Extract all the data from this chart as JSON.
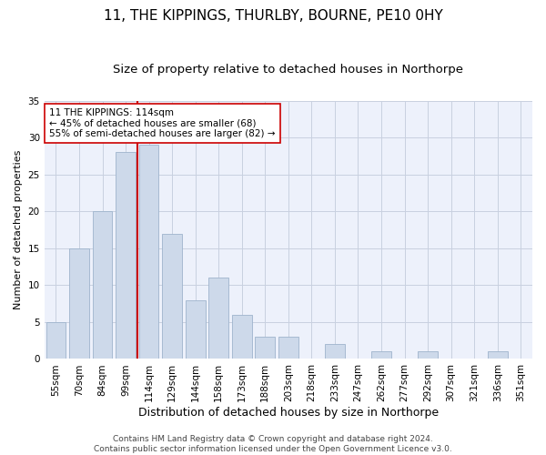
{
  "title": "11, THE KIPPINGS, THURLBY, BOURNE, PE10 0HY",
  "subtitle": "Size of property relative to detached houses in Northorpe",
  "xlabel": "Distribution of detached houses by size in Northorpe",
  "ylabel": "Number of detached properties",
  "categories": [
    "55sqm",
    "70sqm",
    "84sqm",
    "99sqm",
    "114sqm",
    "129sqm",
    "144sqm",
    "158sqm",
    "173sqm",
    "188sqm",
    "203sqm",
    "218sqm",
    "233sqm",
    "247sqm",
    "262sqm",
    "277sqm",
    "292sqm",
    "307sqm",
    "321sqm",
    "336sqm",
    "351sqm"
  ],
  "values": [
    5,
    15,
    20,
    28,
    29,
    17,
    8,
    11,
    6,
    3,
    3,
    0,
    2,
    0,
    1,
    0,
    1,
    0,
    0,
    1,
    0
  ],
  "bar_color": "#cdd9ea",
  "bar_edge_color": "#9eb4cc",
  "vline_x_pos": 3.5,
  "vline_color": "#cc0000",
  "annotation_text": "11 THE KIPPINGS: 114sqm\n← 45% of detached houses are smaller (68)\n55% of semi-detached houses are larger (82) →",
  "annotation_box_facecolor": "#ffffff",
  "annotation_box_edgecolor": "#cc0000",
  "ylim": [
    0,
    35
  ],
  "yticks": [
    0,
    5,
    10,
    15,
    20,
    25,
    30,
    35
  ],
  "grid_color": "#c8d0e0",
  "plot_bg_color": "#edf1fb",
  "footer_line1": "Contains HM Land Registry data © Crown copyright and database right 2024.",
  "footer_line2": "Contains public sector information licensed under the Open Government Licence v3.0.",
  "title_fontsize": 11,
  "subtitle_fontsize": 9.5,
  "xlabel_fontsize": 9,
  "ylabel_fontsize": 8,
  "tick_fontsize": 7.5,
  "footer_fontsize": 6.5,
  "annotation_fontsize": 7.5
}
